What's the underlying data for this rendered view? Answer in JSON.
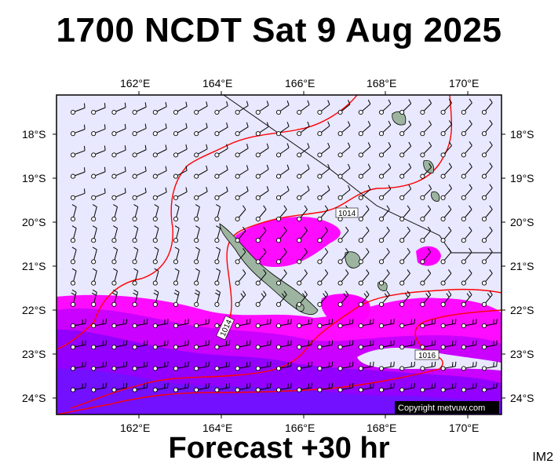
{
  "header": {
    "title": "1700 NCDT Sat 9 Aug 2025"
  },
  "footer": {
    "forecast": "Forecast +30 hr",
    "badge": "IM2"
  },
  "map": {
    "lon_range": [
      160,
      171
    ],
    "lat_range": [
      -24.4,
      -17.0
    ],
    "lon_ticks": [
      "162°E",
      "164°E",
      "166°E",
      "168°E",
      "170°E"
    ],
    "lat_ticks": [
      "18°S",
      "19°S",
      "20°S",
      "21°S",
      "22°S",
      "23°S",
      "24°S"
    ],
    "isobar_labels": [
      "1014",
      "1014",
      "1016"
    ],
    "copyright": "Copyright metvuw.com",
    "colors": {
      "background": "#e8e8ff",
      "wind_light": "#ff00ff",
      "wind_medium": "#b000ff",
      "wind_strong": "#6a00ff",
      "isobar": "#ff0000",
      "land": "#9db5a0"
    }
  }
}
